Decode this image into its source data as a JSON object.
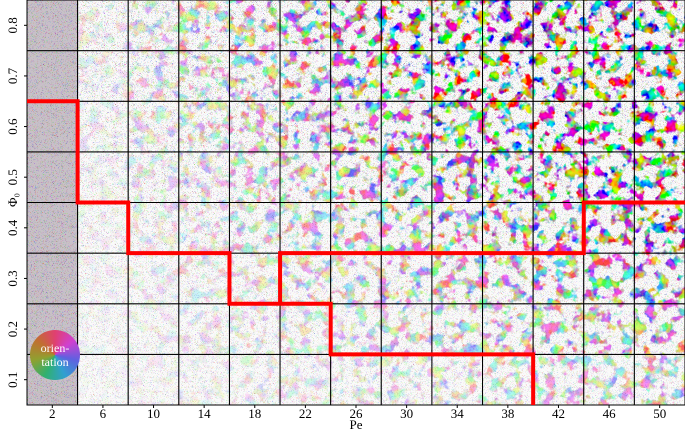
{
  "chart_data": {
    "type": "phase-grid",
    "xlabel": "Pe",
    "ylabel": "Φ₀",
    "xlim": [
      0,
      52
    ],
    "ylim": [
      0.05,
      0.85
    ],
    "xticks": [
      2,
      6,
      10,
      14,
      18,
      22,
      26,
      30,
      34,
      38,
      42,
      46,
      50
    ],
    "yticks": [
      0.1,
      0.2,
      0.3,
      0.4,
      0.5,
      0.6,
      0.7,
      0.8
    ],
    "legend_text": [
      "orien-",
      "tation"
    ],
    "lines": [
      {
        "color": "#ff0000",
        "x": [
          0,
          4,
          4,
          8,
          8,
          16,
          16,
          24,
          24,
          40,
          40
        ],
        "values": [
          0.65,
          0.65,
          0.45,
          0.45,
          0.35,
          0.35,
          0.25,
          0.25,
          0.15,
          0.15,
          0.05
        ]
      },
      {
        "color": "#ff0000",
        "x": [
          20,
          20,
          44,
          44,
          52
        ],
        "values": [
          0.25,
          0.35,
          0.35,
          0.45,
          0.45
        ]
      }
    ]
  }
}
